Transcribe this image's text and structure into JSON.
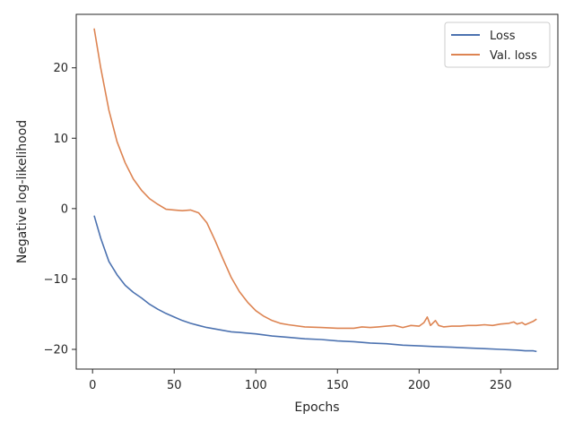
{
  "chart_data": {
    "type": "line",
    "title": "",
    "xlabel": "Epochs",
    "ylabel": "Negative log-likelihood",
    "xlim": [
      -10,
      285
    ],
    "ylim": [
      -22.8,
      27.6
    ],
    "xticks": [
      0,
      50,
      100,
      150,
      200,
      250
    ],
    "yticks": [
      -20,
      -10,
      0,
      10,
      20
    ],
    "xtick_labels": [
      "0",
      "50",
      "100",
      "150",
      "200",
      "250"
    ],
    "ytick_labels": [
      "−20",
      "−10",
      "0",
      "10",
      "20"
    ],
    "grid": false,
    "legend_position": "top-right",
    "series": [
      {
        "name": "Loss",
        "color": "#4c72b0",
        "x": [
          1,
          5,
          10,
          15,
          20,
          25,
          30,
          35,
          40,
          45,
          50,
          55,
          60,
          65,
          70,
          75,
          80,
          85,
          90,
          95,
          100,
          110,
          120,
          130,
          140,
          150,
          160,
          170,
          180,
          190,
          200,
          210,
          220,
          230,
          240,
          250,
          260,
          265,
          270,
          272
        ],
        "y": [
          -1.0,
          -4.2,
          -7.5,
          -9.4,
          -10.9,
          -11.9,
          -12.7,
          -13.6,
          -14.3,
          -14.9,
          -15.4,
          -15.9,
          -16.3,
          -16.6,
          -16.9,
          -17.1,
          -17.3,
          -17.5,
          -17.6,
          -17.7,
          -17.8,
          -18.1,
          -18.3,
          -18.5,
          -18.6,
          -18.8,
          -18.9,
          -19.1,
          -19.2,
          -19.4,
          -19.5,
          -19.6,
          -19.7,
          -19.8,
          -19.9,
          -20.0,
          -20.1,
          -20.2,
          -20.2,
          -20.3
        ]
      },
      {
        "name": "Val. loss",
        "color": "#dd8452",
        "x": [
          1,
          5,
          10,
          15,
          20,
          25,
          30,
          35,
          40,
          45,
          50,
          55,
          60,
          65,
          70,
          75,
          80,
          85,
          90,
          95,
          100,
          105,
          110,
          115,
          120,
          130,
          140,
          150,
          160,
          165,
          170,
          175,
          180,
          185,
          190,
          195,
          200,
          203,
          205,
          207,
          210,
          212,
          215,
          220,
          225,
          230,
          235,
          240,
          245,
          250,
          255,
          258,
          260,
          263,
          265,
          270,
          272
        ],
        "y": [
          25.6,
          20.0,
          14.0,
          9.5,
          6.5,
          4.2,
          2.6,
          1.4,
          0.6,
          -0.1,
          -0.2,
          -0.3,
          -0.2,
          -0.6,
          -2.0,
          -4.5,
          -7.2,
          -9.8,
          -11.8,
          -13.3,
          -14.5,
          -15.3,
          -15.9,
          -16.3,
          -16.5,
          -16.8,
          -16.9,
          -17.0,
          -17.0,
          -16.8,
          -16.9,
          -16.8,
          -16.7,
          -16.6,
          -16.9,
          -16.6,
          -16.7,
          -16.2,
          -15.4,
          -16.6,
          -15.9,
          -16.6,
          -16.8,
          -16.7,
          -16.7,
          -16.6,
          -16.6,
          -16.5,
          -16.6,
          -16.4,
          -16.3,
          -16.1,
          -16.4,
          -16.2,
          -16.5,
          -16.0,
          -15.7
        ]
      }
    ]
  }
}
